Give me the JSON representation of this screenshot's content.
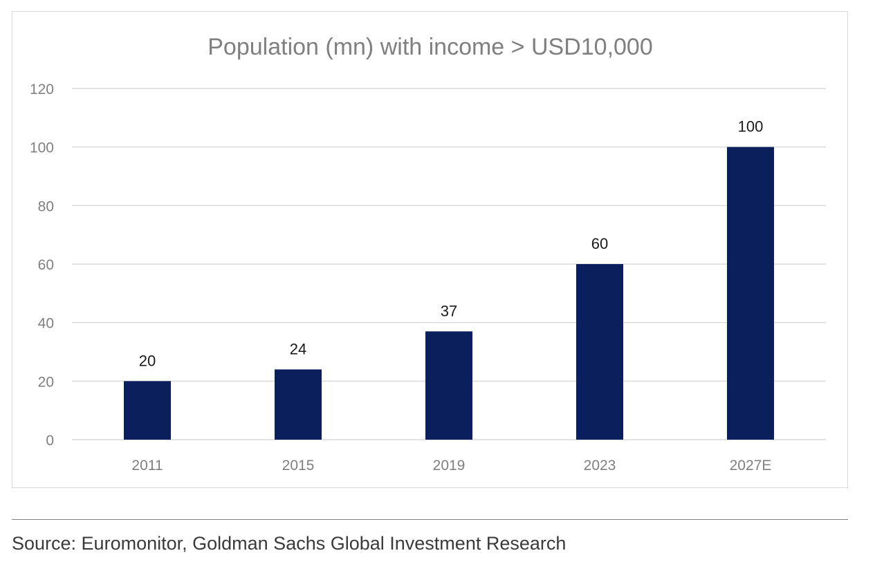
{
  "chart_data": {
    "type": "bar",
    "title": "Population (mn) with income > USD10,000",
    "categories": [
      "2011",
      "2015",
      "2019",
      "2023",
      "2027E"
    ],
    "values": [
      20,
      24,
      37,
      60,
      100
    ],
    "data_labels": [
      "20",
      "24",
      "37",
      "60",
      "100"
    ],
    "ylim": [
      0,
      120
    ],
    "yticks": [
      0,
      20,
      40,
      60,
      80,
      100,
      120
    ],
    "xlabel": "",
    "ylabel": "",
    "grid": true,
    "legend": "none",
    "bar_color": "#0a1f5c"
  },
  "source": "Source: Euromonitor, Goldman Sachs Global Investment Research"
}
